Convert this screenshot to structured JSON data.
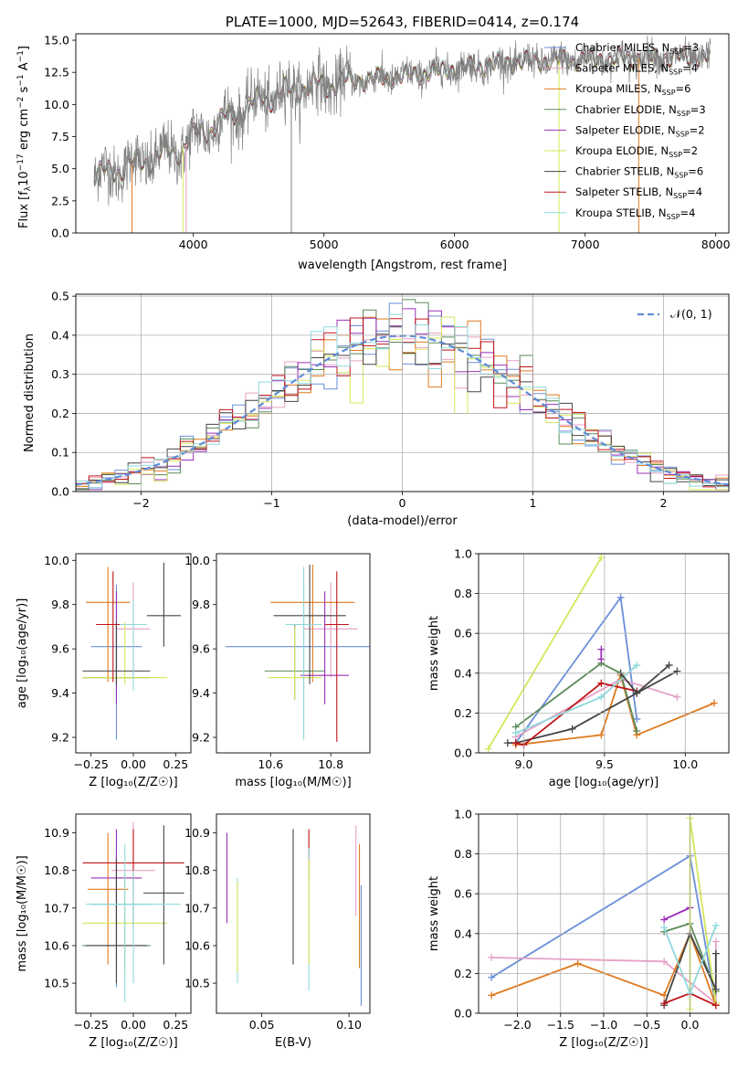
{
  "colors": {
    "c1": "#6a8fd8",
    "c2": "#e7a1c6",
    "c3": "#e07a1f",
    "c4": "#5a8a5a",
    "c5": "#9b30b8",
    "c6": "#d6e65a",
    "c7": "#444444",
    "c8": "#c0141a",
    "c9": "#8fd9dc",
    "gray": "#808080",
    "gauss": "#5f8bd6"
  },
  "chart_data": [
    {
      "type": "line",
      "title": "PLATE=1000, MJD=52643, FIBERID=0414, z=0.174",
      "xlabel": "wavelength [Angstrom, rest frame]",
      "ylabel_parts": [
        "Flux [f",
        "λ",
        "10",
        "−17",
        " erg cm",
        "−2",
        " s",
        "−1",
        " A",
        "−1",
        "]"
      ],
      "xlim": [
        3100,
        8100
      ],
      "ylim": [
        0,
        15.5
      ],
      "xticks": [
        4000,
        5000,
        6000,
        7000,
        8000
      ],
      "yticks": [
        0.0,
        2.5,
        5.0,
        7.5,
        10.0,
        12.5,
        15.0
      ],
      "ytick_labels": [
        "0.0",
        "2.5",
        "5.0",
        "7.5",
        "10.0",
        "12.5",
        "15.0"
      ],
      "spectrum_range": [
        3240,
        7960
      ],
      "continuum_anchors_x": [
        3240,
        3500,
        3900,
        4000,
        4200,
        4500,
        4800,
        5200,
        5600,
        6000,
        6500,
        7000,
        7400,
        7960
      ],
      "continuum_anchors_y": [
        4.4,
        5.2,
        6.5,
        7.4,
        8.6,
        10.3,
        11.3,
        11.8,
        12.2,
        12.8,
        13.3,
        13.5,
        13.6,
        13.7
      ],
      "legend": {
        "placement": "upper right",
        "entries": [
          {
            "label": "Chabrier MILES, N",
            "sub": "SSP",
            "val": "=3",
            "color": "c1"
          },
          {
            "label": "Salpeter MILES, N",
            "sub": "SSP",
            "val": "=4",
            "color": "c2"
          },
          {
            "label": "Kroupa MILES, N",
            "sub": "SSP",
            "val": "=6",
            "color": "c3"
          },
          {
            "label": "Chabrier ELODIE, N",
            "sub": "SSP",
            "val": "=3",
            "color": "c4"
          },
          {
            "label": "Salpeter ELODIE, N",
            "sub": "SSP",
            "val": "=2",
            "color": "c5"
          },
          {
            "label": "Kroupa ELODIE, N",
            "sub": "SSP",
            "val": "=2",
            "color": "c6"
          },
          {
            "label": "Chabrier STELIB, N",
            "sub": "SSP",
            "val": "=6",
            "color": "c7"
          },
          {
            "label": "Salpeter STELIB, N",
            "sub": "SSP",
            "val": "=4",
            "color": "c8"
          },
          {
            "label": "Kroupa STELIB, N",
            "sub": "SSP",
            "val": "=4",
            "color": "c9"
          }
        ]
      }
    },
    {
      "type": "histogram",
      "xlabel": "(data-model)/error",
      "ylabel": "Normed distribution",
      "xlim": [
        -2.5,
        2.5
      ],
      "ylim": [
        0,
        0.505
      ],
      "xticks": [
        -2,
        -1,
        0,
        1,
        2
      ],
      "xtick_labels": [
        "−2",
        "−1",
        "0",
        "1",
        "2"
      ],
      "yticks": [
        0.0,
        0.1,
        0.2,
        0.3,
        0.4,
        0.5
      ],
      "ytick_labels": [
        "0.0",
        "0.1",
        "0.2",
        "0.3",
        "0.4",
        "0.5"
      ],
      "bin_width": 0.1,
      "grid": true,
      "legend": {
        "placement": "upper right",
        "label": "𝒩(0, 1)"
      }
    },
    {
      "type": "errorbar",
      "xlabel": "Z [log₁₀(Z/Z☉)]",
      "ylabel": "age  [log₁₀(age/yr)]",
      "xlim": [
        -0.34,
        0.34
      ],
      "ylim": [
        9.13,
        10.03
      ],
      "xticks": [
        -0.25,
        0.0,
        0.25
      ],
      "xtick_labels": [
        "−0.25",
        "0.00",
        "0.25"
      ],
      "yticks": [
        9.2,
        9.4,
        9.6,
        9.8,
        10.0
      ],
      "ytick_labels": [
        "9.2",
        "9.4",
        "9.6",
        "9.8",
        "10.0"
      ],
      "points": [
        {
          "x": -0.1,
          "y": 9.61,
          "xe": 0.15,
          "ylo": 9.19,
          "yhi": 9.89,
          "color": "c1"
        },
        {
          "x": 0.0,
          "y": 9.69,
          "xe": 0.1,
          "ylo": 9.47,
          "yhi": 9.9,
          "color": "c2"
        },
        {
          "x": -0.15,
          "y": 9.81,
          "xe": 0.13,
          "ylo": 9.45,
          "yhi": 9.97,
          "color": "c3"
        },
        {
          "x": -0.1,
          "y": 9.47,
          "xe": 0.2,
          "ylo": 9.37,
          "yhi": 9.71,
          "color": "c4"
        },
        {
          "x": -0.1,
          "y": 9.71,
          "xe": 0.12,
          "ylo": 9.35,
          "yhi": 9.86,
          "color": "c5"
        },
        {
          "x": -0.05,
          "y": 9.47,
          "xe": 0.25,
          "ylo": 9.44,
          "yhi": 9.72,
          "color": "c6"
        },
        {
          "x": -0.1,
          "y": 9.5,
          "xe": 0.2,
          "ylo": 9.44,
          "yhi": 9.72,
          "color": "c7"
        },
        {
          "x": -0.12,
          "y": 9.71,
          "xe": 0.1,
          "ylo": 9.45,
          "yhi": 9.95,
          "color": "c8"
        },
        {
          "x": 0.0,
          "y": 9.71,
          "xe": 0.08,
          "ylo": 9.41,
          "yhi": 9.82,
          "color": "c9"
        },
        {
          "x": 0.18,
          "y": 9.75,
          "xe": 0.1,
          "ylo": 9.61,
          "yhi": 9.99,
          "color": "c7"
        }
      ]
    },
    {
      "type": "errorbar",
      "xlabel": "mass [log₁₀(M/M☉)]",
      "ylabel": "",
      "xlim": [
        10.42,
        10.93
      ],
      "ylim": [
        9.13,
        10.03
      ],
      "xticks": [
        10.6,
        10.8
      ],
      "xtick_labels": [
        "10.6",
        "10.8"
      ],
      "yticks": [
        9.2,
        9.4,
        9.6,
        9.8,
        10.0
      ],
      "ytick_labels": [
        "9.2",
        "9.4",
        "9.6",
        "9.8",
        "10.0"
      ],
      "points": [
        {
          "x": 10.71,
          "y": 9.61,
          "xe": 0.26,
          "ylo": 9.2,
          "yhi": 9.89,
          "color": "c1"
        },
        {
          "x": 10.8,
          "y": 9.69,
          "xe": 0.09,
          "ylo": 9.47,
          "yhi": 9.9,
          "color": "c2"
        },
        {
          "x": 10.74,
          "y": 9.81,
          "xe": 0.14,
          "ylo": 9.45,
          "yhi": 9.98,
          "color": "c3"
        },
        {
          "x": 10.68,
          "y": 9.5,
          "xe": 0.1,
          "ylo": 9.37,
          "yhi": 9.71,
          "color": "c4"
        },
        {
          "x": 10.78,
          "y": 9.48,
          "xe": 0.08,
          "ylo": 9.35,
          "yhi": 9.86,
          "color": "c5"
        },
        {
          "x": 10.68,
          "y": 9.47,
          "xe": 0.09,
          "ylo": 9.37,
          "yhi": 9.7,
          "color": "c6"
        },
        {
          "x": 10.73,
          "y": 9.75,
          "xe": 0.12,
          "ylo": 9.44,
          "yhi": 9.98,
          "color": "c7"
        },
        {
          "x": 10.82,
          "y": 9.71,
          "xe": 0.04,
          "ylo": 9.18,
          "yhi": 9.95,
          "color": "c8"
        },
        {
          "x": 10.71,
          "y": 9.71,
          "xe": 0.06,
          "ylo": 9.19,
          "yhi": 9.97,
          "color": "c9"
        }
      ]
    },
    {
      "type": "line",
      "xlabel": "age  [log₁₀(age/yr)]",
      "ylabel": "mass weight",
      "xlim": [
        8.72,
        10.27
      ],
      "ylim": [
        0,
        1.0
      ],
      "xticks": [
        9.0,
        9.5,
        10.0
      ],
      "xtick_labels": [
        "9.0",
        "9.5",
        "10.0"
      ],
      "yticks": [
        0.0,
        0.2,
        0.4,
        0.6,
        0.8,
        1.0
      ],
      "ytick_labels": [
        "0.0",
        "0.2",
        "0.4",
        "0.6",
        "0.8",
        "1.0"
      ],
      "grid": true,
      "series": [
        {
          "color": "c1",
          "x": [
            8.95,
            9.6,
            9.7
          ],
          "y": [
            0.05,
            0.78,
            0.17
          ]
        },
        {
          "color": "c2",
          "x": [
            8.95,
            9.6,
            9.95
          ],
          "y": [
            0.08,
            0.37,
            0.28
          ]
        },
        {
          "color": "c3",
          "x": [
            8.95,
            9.48,
            9.6,
            9.7,
            10.18
          ],
          "y": [
            0.04,
            0.09,
            0.39,
            0.09,
            0.25
          ]
        },
        {
          "color": "c4",
          "x": [
            8.95,
            9.48,
            9.6,
            9.7
          ],
          "y": [
            0.13,
            0.45,
            0.4,
            0.11
          ]
        },
        {
          "color": "c5",
          "x": [
            9.48,
            9.48
          ],
          "y": [
            0.47,
            0.52
          ]
        },
        {
          "color": "c6",
          "x": [
            8.78,
            9.48
          ],
          "y": [
            0.02,
            0.98
          ]
        },
        {
          "color": "c7",
          "x": [
            8.9,
            8.95,
            9.3,
            9.7,
            9.95
          ],
          "y": [
            0.05,
            0.05,
            0.12,
            0.3,
            0.41
          ]
        },
        {
          "color": "c8",
          "x": [
            8.95,
            9.0,
            9.48,
            9.7
          ],
          "y": [
            0.05,
            0.04,
            0.35,
            0.31
          ]
        },
        {
          "color": "c9",
          "x": [
            8.95,
            9.48,
            9.7
          ],
          "y": [
            0.1,
            0.28,
            0.44
          ]
        },
        {
          "color": "c7",
          "x": [
            9.6,
            9.7,
            9.7,
            9.9
          ],
          "y": [
            0.4,
            0.3,
            0.3,
            0.44
          ]
        }
      ]
    },
    {
      "type": "errorbar",
      "xlabel": "Z [log₁₀(Z/Z☉)]",
      "ylabel": "mass [log₁₀(M/M☉)]",
      "xlim": [
        -0.34,
        0.34
      ],
      "ylim": [
        10.42,
        10.95
      ],
      "xticks": [
        -0.25,
        0.0,
        0.25
      ],
      "xtick_labels": [
        "−0.25",
        "0.00",
        "0.25"
      ],
      "yticks": [
        10.5,
        10.6,
        10.7,
        10.8,
        10.9
      ],
      "ytick_labels": [
        "10.5",
        "10.6",
        "10.7",
        "10.8",
        "10.9"
      ],
      "points": [
        {
          "x": -0.1,
          "y": 10.71,
          "xe": 0.15,
          "ylo": 10.49,
          "yhi": 10.87,
          "color": "c1"
        },
        {
          "x": 0.0,
          "y": 10.8,
          "xe": 0.13,
          "ylo": 10.66,
          "yhi": 10.93,
          "color": "c2"
        },
        {
          "x": -0.15,
          "y": 10.75,
          "xe": 0.12,
          "ylo": 10.55,
          "yhi": 10.9,
          "color": "c3"
        },
        {
          "x": -0.1,
          "y": 10.6,
          "xe": 0.2,
          "ylo": 10.55,
          "yhi": 10.85,
          "color": "c4"
        },
        {
          "x": -0.1,
          "y": 10.78,
          "xe": 0.15,
          "ylo": 10.65,
          "yhi": 10.91,
          "color": "c5"
        },
        {
          "x": -0.05,
          "y": 10.66,
          "xe": 0.25,
          "ylo": 10.53,
          "yhi": 10.79,
          "color": "c6"
        },
        {
          "x": -0.1,
          "y": 10.6,
          "xe": 0.18,
          "ylo": 10.5,
          "yhi": 10.83,
          "color": "c7"
        },
        {
          "x": 0.0,
          "y": 10.82,
          "xe": 0.3,
          "ylo": 10.65,
          "yhi": 10.91,
          "color": "c8"
        },
        {
          "x": -0.05,
          "y": 10.71,
          "xe": 0.15,
          "ylo": 10.45,
          "yhi": 10.87,
          "color": "c9"
        },
        {
          "x": 0.18,
          "y": 10.74,
          "xe": 0.12,
          "ylo": 10.55,
          "yhi": 10.92,
          "color": "c7"
        },
        {
          "x": 0.0,
          "y": 10.71,
          "xe": 0.28,
          "ylo": 10.5,
          "yhi": 10.8,
          "color": "c9"
        }
      ]
    },
    {
      "type": "errorbar",
      "xlabel": "E(B-V)",
      "ylabel": "",
      "xlim": [
        0.024,
        0.112
      ],
      "ylim": [
        10.42,
        10.95
      ],
      "xticks": [
        0.05,
        0.1
      ],
      "xtick_labels": [
        "0.05",
        "0.10"
      ],
      "yticks": [
        10.5,
        10.6,
        10.7,
        10.8,
        10.9
      ],
      "ytick_labels": [
        "10.5",
        "10.6",
        "10.7",
        "10.8",
        "10.9"
      ],
      "points": [
        {
          "x": 0.03,
          "y": 10.78,
          "ylo": 10.66,
          "yhi": 10.9,
          "color": "c5"
        },
        {
          "x": 0.036,
          "y": 10.65,
          "ylo": 10.5,
          "yhi": 10.78,
          "color": "c9"
        },
        {
          "x": 0.036,
          "y": 10.63,
          "ylo": 10.53,
          "yhi": 10.77,
          "color": "c6"
        },
        {
          "x": 0.068,
          "y": 10.72,
          "ylo": 10.55,
          "yhi": 10.91,
          "color": "c7"
        },
        {
          "x": 0.077,
          "y": 10.85,
          "ylo": 10.78,
          "yhi": 10.91,
          "color": "c8"
        },
        {
          "x": 0.077,
          "y": 10.66,
          "ylo": 10.48,
          "yhi": 10.86,
          "color": "c9"
        },
        {
          "x": 0.077,
          "y": 10.7,
          "ylo": 10.55,
          "yhi": 10.83,
          "color": "c6"
        },
        {
          "x": 0.104,
          "y": 10.8,
          "ylo": 10.68,
          "yhi": 10.92,
          "color": "c2"
        },
        {
          "x": 0.106,
          "y": 10.72,
          "ylo": 10.54,
          "yhi": 10.87,
          "color": "c3"
        },
        {
          "x": 0.107,
          "y": 10.6,
          "ylo": 10.44,
          "yhi": 10.76,
          "color": "c1"
        }
      ]
    },
    {
      "type": "line",
      "xlabel": "Z [log₁₀(Z/Z☉)]",
      "ylabel": "mass weight",
      "xlim": [
        -2.45,
        0.45
      ],
      "ylim": [
        0,
        1.0
      ],
      "xticks": [
        -2.0,
        -1.5,
        -1.0,
        -0.5,
        0.0
      ],
      "xtick_labels": [
        "−2.0",
        "−1.5",
        "−1.0",
        "−0.5",
        "0.0"
      ],
      "yticks": [
        0.0,
        0.2,
        0.4,
        0.6,
        0.8,
        1.0
      ],
      "ytick_labels": [
        "0.0",
        "0.2",
        "0.4",
        "0.6",
        "0.8",
        "1.0"
      ],
      "grid": true,
      "series": [
        {
          "color": "c1",
          "x": [
            -2.3,
            0.0,
            0.3
          ],
          "y": [
            0.18,
            0.79,
            0.04
          ]
        },
        {
          "color": "c2",
          "x": [
            -2.3,
            -0.3,
            0.3,
            0.3
          ],
          "y": [
            0.28,
            0.26,
            0.05,
            0.36
          ]
        },
        {
          "color": "c3",
          "x": [
            -2.3,
            -1.3,
            -0.3,
            0.0,
            0.3
          ],
          "y": [
            0.09,
            0.25,
            0.09,
            0.4,
            0.04
          ]
        },
        {
          "color": "c4",
          "x": [
            -0.3,
            0.0,
            0.3
          ],
          "y": [
            0.41,
            0.45,
            0.11
          ]
        },
        {
          "color": "c5",
          "x": [
            -0.3,
            0.0
          ],
          "y": [
            0.47,
            0.53
          ]
        },
        {
          "color": "c6",
          "x": [
            0.0,
            0.0,
            0.3
          ],
          "y": [
            0.02,
            0.98,
            0.05
          ]
        },
        {
          "color": "c7",
          "x": [
            -0.3,
            0.0,
            0.3,
            0.3
          ],
          "y": [
            0.04,
            0.4,
            0.12,
            0.3
          ]
        },
        {
          "color": "c8",
          "x": [
            -0.3,
            0.0,
            0.3
          ],
          "y": [
            0.05,
            0.1,
            0.04
          ]
        },
        {
          "color": "c9",
          "x": [
            -0.3,
            0.0,
            0.3
          ],
          "y": [
            0.43,
            0.1,
            0.44
          ]
        }
      ]
    }
  ]
}
